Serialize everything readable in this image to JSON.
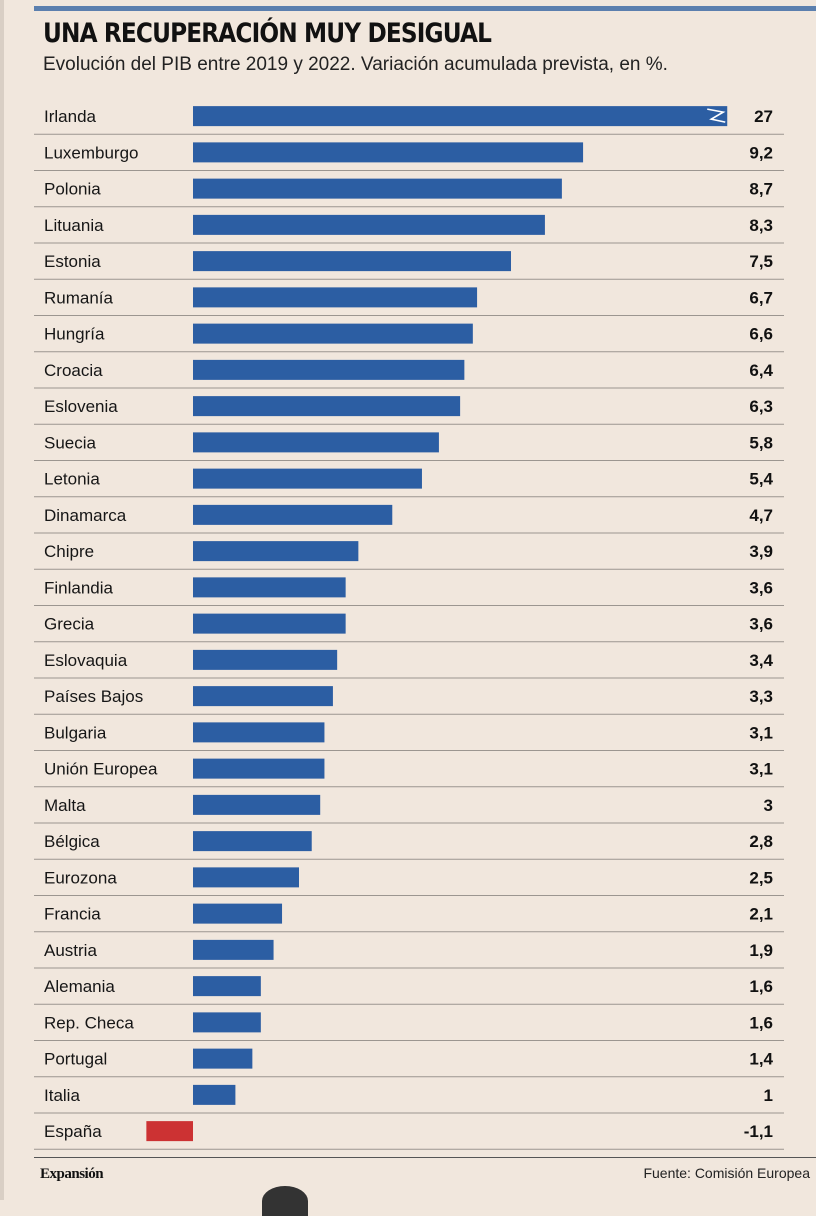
{
  "header": {
    "title": "UNA RECUPERACIÓN MUY DESIGUAL",
    "subtitle": "Evolución del PIB entre 2019 y 2022. Variación acumulada prevista, en %."
  },
  "footer": {
    "logo": "Expansión",
    "source": "Fuente: Comisión Europea"
  },
  "colors": {
    "positive_bar": "#2c5ea3",
    "negative_bar": "#cc3233",
    "background": "#f1e7dd",
    "accent_rule": "#5b7fae"
  },
  "chart_data": {
    "type": "bar",
    "orientation": "horizontal",
    "title": "UNA RECUPERACIÓN MUY DESIGUAL",
    "subtitle": "Evolución del PIB entre 2019 y 2022. Variación acumulada prevista, en %.",
    "xlabel": "",
    "ylabel": "",
    "axis_break": "Irlanda bar is truncated with a break mark",
    "display_cap": 12.6,
    "categories": [
      "Irlanda",
      "Luxemburgo",
      "Polonia",
      "Lituania",
      "Estonia",
      "Rumanía",
      "Hungría",
      "Croacia",
      "Eslovenia",
      "Suecia",
      "Letonia",
      "Dinamarca",
      "Chipre",
      "Finlandia",
      "Grecia",
      "Eslovaquia",
      "Países Bajos",
      "Bulgaria",
      "Unión Europea",
      "Malta",
      "Bélgica",
      "Eurozona",
      "Francia",
      "Austria",
      "Alemania",
      "Rep. Checa",
      "Portugal",
      "Italia",
      "España"
    ],
    "values": [
      27,
      9.2,
      8.7,
      8.3,
      7.5,
      6.7,
      6.6,
      6.4,
      6.3,
      5.8,
      5.4,
      4.7,
      3.9,
      3.6,
      3.6,
      3.4,
      3.3,
      3.1,
      3.1,
      3,
      2.8,
      2.5,
      2.1,
      1.9,
      1.6,
      1.6,
      1.4,
      1,
      -1.1
    ],
    "value_labels": [
      "27",
      "9,2",
      "8,7",
      "8,3",
      "7,5",
      "6,7",
      "6,6",
      "6,4",
      "6,3",
      "5,8",
      "5,4",
      "4,7",
      "3,9",
      "3,6",
      "3,6",
      "3,4",
      "3,3",
      "3,1",
      "3,1",
      "3",
      "2,8",
      "2,5",
      "2,1",
      "1,9",
      "1,6",
      "1,6",
      "1,4",
      "1",
      "-1,1"
    ],
    "source": "Fuente: Comisión Europea"
  }
}
